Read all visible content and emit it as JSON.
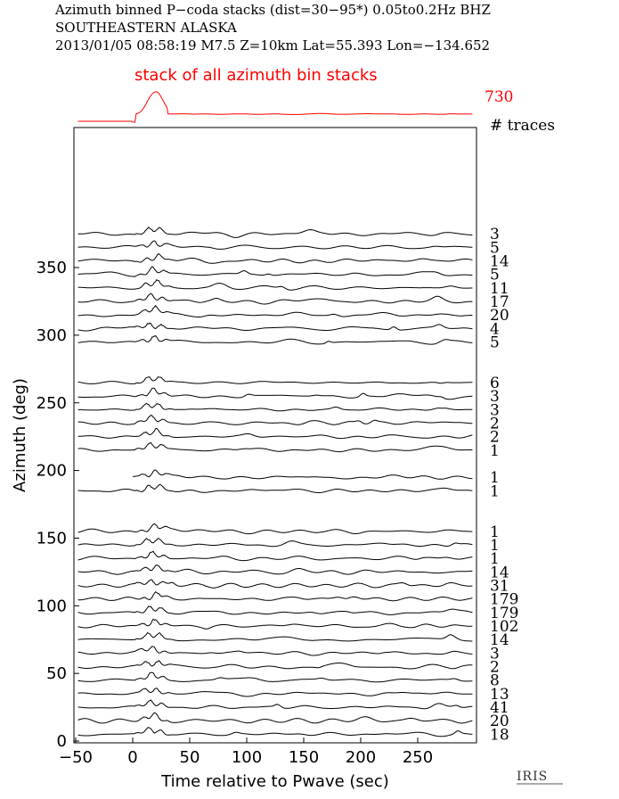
{
  "header": {
    "line1": "Azimuth binned P−coda stacks (dist=30−95*)  0.05to0.2Hz  BHZ",
    "line2": "SOUTHEASTERN ALASKA",
    "line3": "2013/01/05   08:58:19   M7.5   Z=10km  Lat=55.393  Lon=−134.652"
  },
  "logo_text": "IRIS",
  "colors": {
    "summary": "#ff0000",
    "traces": "#000000"
  },
  "chart_data": {
    "type": "line",
    "title": "Azimuth binned P−coda stacks (dist=30−95*)  0.05to0.2Hz  BHZ",
    "xlabel": "Time relative to Pwave (sec)",
    "ylabel": "Azimuth (deg)",
    "xlim": [
      -50,
      300
    ],
    "ylim": [
      0,
      382
    ],
    "xticks": [
      -50,
      0,
      50,
      100,
      150,
      200,
      250
    ],
    "yticks": [
      0,
      50,
      100,
      150,
      200,
      250,
      300,
      350
    ],
    "xtick_labels": [
      "−50",
      "0",
      "50",
      "100",
      "150",
      "200",
      "250"
    ],
    "ytick_labels": [
      "0",
      "50",
      "100",
      "150",
      "200",
      "250",
      "300",
      "350"
    ],
    "summary": {
      "label": "stack of all azimuth bin stacks",
      "count": "730"
    },
    "count_header": "# traces",
    "traces": [
      {
        "azimuth": 5,
        "count": "18"
      },
      {
        "azimuth": 15,
        "count": "20"
      },
      {
        "azimuth": 25,
        "count": "41"
      },
      {
        "azimuth": 35,
        "count": "13"
      },
      {
        "azimuth": 45,
        "count": "8"
      },
      {
        "azimuth": 55,
        "count": "2"
      },
      {
        "azimuth": 65,
        "count": "3"
      },
      {
        "azimuth": 75,
        "count": "14"
      },
      {
        "azimuth": 85,
        "count": "102"
      },
      {
        "azimuth": 95,
        "count": "179"
      },
      {
        "azimuth": 105,
        "count": "179"
      },
      {
        "azimuth": 115,
        "count": "31"
      },
      {
        "azimuth": 125,
        "count": "14"
      },
      {
        "azimuth": 135,
        "count": "1"
      },
      {
        "azimuth": 145,
        "count": "1"
      },
      {
        "azimuth": 155,
        "count": "1"
      },
      {
        "azimuth": 185,
        "count": "1"
      },
      {
        "azimuth": 195,
        "count": "1"
      },
      {
        "azimuth": 215,
        "count": "1"
      },
      {
        "azimuth": 225,
        "count": "2"
      },
      {
        "azimuth": 235,
        "count": "2"
      },
      {
        "azimuth": 245,
        "count": "3"
      },
      {
        "azimuth": 255,
        "count": "3"
      },
      {
        "azimuth": 265,
        "count": "6"
      },
      {
        "azimuth": 295,
        "count": "5"
      },
      {
        "azimuth": 305,
        "count": "4"
      },
      {
        "azimuth": 315,
        "count": "20"
      },
      {
        "azimuth": 325,
        "count": "17"
      },
      {
        "azimuth": 335,
        "count": "11"
      },
      {
        "azimuth": 345,
        "count": "5"
      },
      {
        "azimuth": 355,
        "count": "14"
      },
      {
        "azimuth": 365,
        "count": "5"
      },
      {
        "azimuth": 375,
        "count": "3"
      }
    ]
  }
}
